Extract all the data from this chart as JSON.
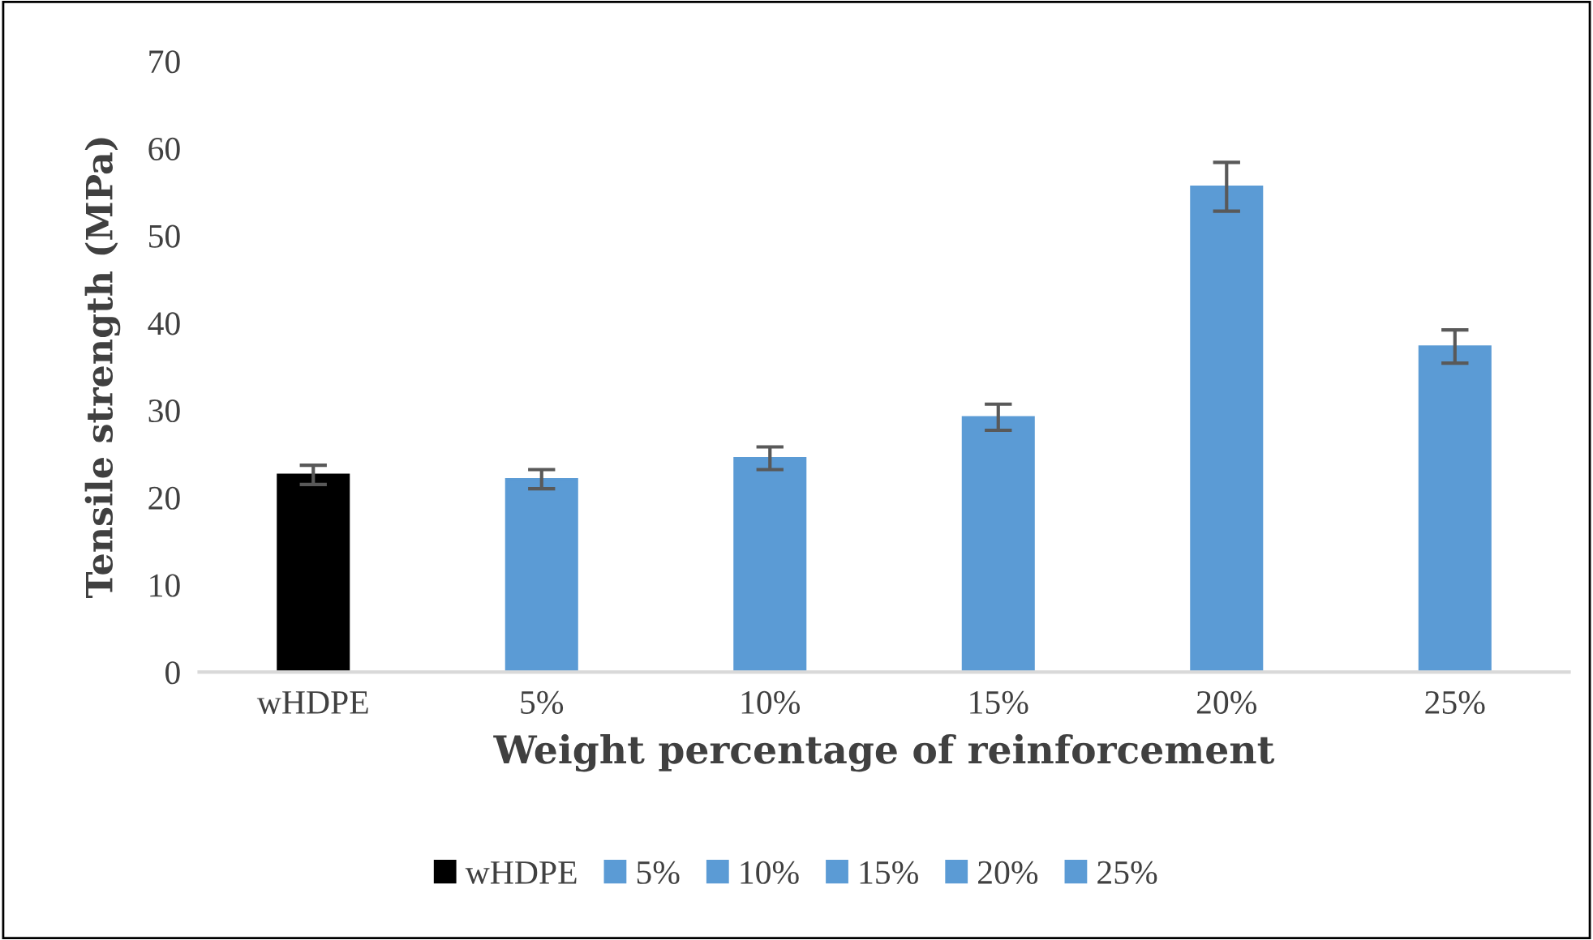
{
  "chart_data": {
    "type": "bar",
    "xlabel": "Weight percentage of reinforcement",
    "ylabel": "Tensile strength (MPa)",
    "categories": [
      "wHDPE",
      "5%",
      "10%",
      "15%",
      "20%",
      "25%"
    ],
    "series": [
      {
        "name": "wHDPE",
        "color": "#000000",
        "values": [
          22.6,
          null,
          null,
          null,
          null,
          null
        ],
        "errors": [
          1.1,
          null,
          null,
          null,
          null,
          null
        ]
      },
      {
        "name": "5%",
        "color": "#5b9bd5",
        "values": [
          null,
          22.1,
          null,
          null,
          null,
          null
        ],
        "errors": [
          null,
          1.1,
          null,
          null,
          null,
          null
        ]
      },
      {
        "name": "10%",
        "color": "#5b9bd5",
        "values": [
          null,
          null,
          24.5,
          null,
          null,
          null
        ],
        "errors": [
          null,
          null,
          1.3,
          null,
          null,
          null
        ]
      },
      {
        "name": "15%",
        "color": "#5b9bd5",
        "values": [
          null,
          null,
          null,
          29.2,
          null,
          null
        ],
        "errors": [
          null,
          null,
          null,
          1.5,
          null,
          null
        ]
      },
      {
        "name": "20%",
        "color": "#5b9bd5",
        "values": [
          null,
          null,
          null,
          null,
          55.6,
          null
        ],
        "errors": [
          null,
          null,
          null,
          null,
          2.8,
          null
        ]
      },
      {
        "name": "25%",
        "color": "#5b9bd5",
        "values": [
          null,
          null,
          null,
          null,
          null,
          37.3
        ],
        "errors": [
          null,
          null,
          null,
          null,
          null,
          1.9
        ]
      }
    ],
    "ylim": [
      0,
      70
    ],
    "yticks": [
      0,
      10,
      20,
      30,
      40,
      50,
      60,
      70
    ],
    "grid": false,
    "legend": "bottom"
  }
}
